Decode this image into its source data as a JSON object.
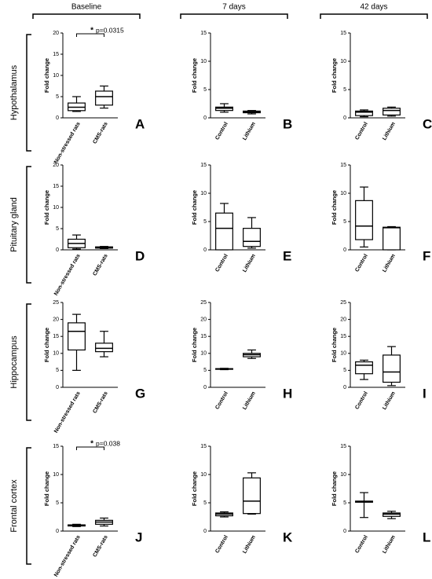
{
  "columns": [
    "Baseline",
    "7 days",
    "42 days"
  ],
  "rows": [
    "Hypothalamus",
    "Pituitary gland",
    "Hippocampus",
    "Frontal cortex"
  ],
  "chart_data": [
    {
      "type": "box",
      "panel": "A",
      "ylabel": "Fold change",
      "categories": [
        "Non-stressed rats",
        "CMS-rats"
      ],
      "min": [
        1.5,
        2.3
      ],
      "q1": [
        1.7,
        3
      ],
      "median": [
        2.5,
        5
      ],
      "q3": [
        3.5,
        6.3
      ],
      "max": [
        5,
        7.5
      ],
      "ylim": [
        0,
        20
      ],
      "yticks": [
        0,
        5,
        10,
        15,
        20
      ],
      "color": "#000000",
      "annotation": {
        "marker": "*",
        "text": "p=0.0315",
        "color": "#c0392b"
      }
    },
    {
      "type": "box",
      "panel": "B",
      "ylabel": "Fold change",
      "categories": [
        "Control",
        "Lithium"
      ],
      "min": [
        1,
        0.7
      ],
      "q1": [
        1.3,
        0.9
      ],
      "median": [
        1.7,
        1.0
      ],
      "q3": [
        1.9,
        1.2
      ],
      "max": [
        2.5,
        1.3
      ],
      "ylim": [
        0,
        15
      ],
      "yticks": [
        0,
        5,
        10,
        15
      ],
      "color": "#000000"
    },
    {
      "type": "box",
      "panel": "C",
      "ylabel": "Fold change",
      "categories": [
        "Control",
        "Lithium"
      ],
      "min": [
        0.2,
        0.3
      ],
      "q1": [
        0.4,
        0.5
      ],
      "median": [
        1.0,
        1.3
      ],
      "q3": [
        1.2,
        1.7
      ],
      "max": [
        1.4,
        1.9
      ],
      "ylim": [
        0,
        15
      ],
      "yticks": [
        0,
        5,
        10,
        15
      ],
      "color": "#000000"
    },
    {
      "type": "box",
      "panel": "D",
      "ylabel": "Fold change",
      "categories": [
        "Non-stressed rats",
        "CMS-rats"
      ],
      "min": [
        0.2,
        0.3
      ],
      "q1": [
        0.5,
        0.4
      ],
      "median": [
        1.5,
        0.6
      ],
      "q3": [
        2.5,
        0.7
      ],
      "max": [
        3.5,
        0.8
      ],
      "ylim": [
        0,
        20
      ],
      "yticks": [
        0,
        5,
        10,
        15,
        20
      ],
      "color": "#000000"
    },
    {
      "type": "box",
      "panel": "E",
      "ylabel": "Fold change",
      "categories": [
        "Control",
        "Lithium"
      ],
      "min": [
        0,
        0.3
      ],
      "q1": [
        0,
        0.6
      ],
      "median": [
        3.8,
        1.5
      ],
      "q3": [
        6.5,
        3.8
      ],
      "max": [
        8.2,
        5.7
      ],
      "ylim": [
        0,
        15
      ],
      "yticks": [
        0,
        5,
        10,
        15
      ],
      "color": "#000000"
    },
    {
      "type": "box",
      "panel": "F",
      "ylabel": "Fold change",
      "categories": [
        "Control",
        "Lithium"
      ],
      "min": [
        0.5,
        0
      ],
      "q1": [
        1.8,
        0
      ],
      "median": [
        4.2,
        3.9
      ],
      "q3": [
        8.7,
        4.0
      ],
      "max": [
        11.1,
        4.1
      ],
      "ylim": [
        0,
        15
      ],
      "yticks": [
        0,
        5,
        10,
        15
      ],
      "color": "#000000"
    },
    {
      "type": "box",
      "panel": "G",
      "ylabel": "Fold change",
      "categories": [
        "Non-stressed rats",
        "CMS-rats"
      ],
      "min": [
        5,
        9
      ],
      "q1": [
        11,
        10.5
      ],
      "median": [
        16.5,
        11.5
      ],
      "q3": [
        19,
        13
      ],
      "max": [
        21.5,
        16.5
      ],
      "ylim": [
        0,
        25
      ],
      "yticks": [
        0,
        5,
        10,
        15,
        20,
        25
      ],
      "color": "#000000"
    },
    {
      "type": "box",
      "panel": "H",
      "ylabel": "Fold change",
      "categories": [
        "Control",
        "Lithium"
      ],
      "min": [
        5.2,
        8.5
      ],
      "q1": [
        5.3,
        9
      ],
      "median": [
        5.4,
        9.6
      ],
      "q3": [
        5.5,
        10
      ],
      "max": [
        5.6,
        11
      ],
      "ylim": [
        0,
        25
      ],
      "yticks": [
        0,
        5,
        10,
        15,
        20,
        25
      ],
      "color": "#000000"
    },
    {
      "type": "box",
      "panel": "I",
      "ylabel": "Fold change",
      "categories": [
        "Control",
        "Lithium"
      ],
      "min": [
        2.3,
        0.5
      ],
      "q1": [
        4,
        1.5
      ],
      "median": [
        6.5,
        4.5
      ],
      "q3": [
        7.5,
        9.5
      ],
      "max": [
        8,
        12
      ],
      "ylim": [
        0,
        25
      ],
      "yticks": [
        0,
        5,
        10,
        15,
        20,
        25
      ],
      "color": "#000000"
    },
    {
      "type": "box",
      "panel": "J",
      "ylabel": "Fold change",
      "categories": [
        "Non-stressed rats",
        "CMS-rats"
      ],
      "min": [
        0.8,
        0.9
      ],
      "q1": [
        0.9,
        1.2
      ],
      "median": [
        1.0,
        1.6
      ],
      "q3": [
        1.1,
        1.9
      ],
      "max": [
        1.2,
        2.3
      ],
      "ylim": [
        0,
        15
      ],
      "yticks": [
        0,
        5,
        10,
        15
      ],
      "color": "#000000",
      "annotation": {
        "marker": "*",
        "text": "p=0.038",
        "color": "#c0392b"
      }
    },
    {
      "type": "box",
      "panel": "K",
      "ylabel": "Fold change",
      "categories": [
        "Control",
        "Lithium"
      ],
      "min": [
        2.5,
        3
      ],
      "q1": [
        2.7,
        3.1
      ],
      "median": [
        3.0,
        5.3
      ],
      "q3": [
        3.2,
        9.4
      ],
      "max": [
        3.4,
        10.3
      ],
      "ylim": [
        0,
        15
      ],
      "yticks": [
        0,
        5,
        10,
        15
      ],
      "color": "#000000"
    },
    {
      "type": "box",
      "panel": "L",
      "ylabel": "Fold change",
      "categories": [
        "Control",
        "Lithium"
      ],
      "min": [
        2.4,
        2.2
      ],
      "q1": [
        5.1,
        2.6
      ],
      "median": [
        5.2,
        3.0
      ],
      "q3": [
        5.3,
        3.2
      ],
      "max": [
        6.8,
        3.5
      ],
      "ylim": [
        0,
        15
      ],
      "yticks": [
        0,
        5,
        10,
        15
      ],
      "color": "#000000"
    }
  ]
}
